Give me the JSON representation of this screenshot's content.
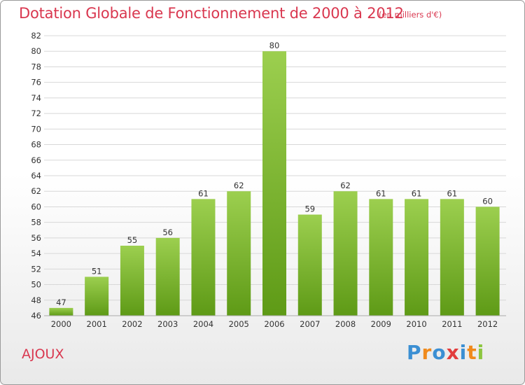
{
  "header": {
    "title": "Dotation Globale de Fonctionnement de 2000 à 2012",
    "subtitle": "(en milliers d'€)"
  },
  "commune": "AJOUX",
  "logo": {
    "text": "Proxiti",
    "letters": [
      {
        "ch": "P",
        "color": "#3b8fd3"
      },
      {
        "ch": "r",
        "color": "#f08a1c"
      },
      {
        "ch": "o",
        "color": "#3b8fd3"
      },
      {
        "ch": "x",
        "color": "#e23c3c"
      },
      {
        "ch": "i",
        "color": "#3b8fd3"
      },
      {
        "ch": "t",
        "color": "#f08a1c"
      },
      {
        "ch": "i",
        "color": "#8cc63f"
      }
    ]
  },
  "colors": {
    "title": "#d9374f",
    "bar_top": "#9ccf4f",
    "bar_bottom": "#5e9a16",
    "grid": "#d8d8d8"
  },
  "chart_data": {
    "type": "bar",
    "categories": [
      "2000",
      "2001",
      "2002",
      "2003",
      "2004",
      "2005",
      "2006",
      "2007",
      "2008",
      "2009",
      "2010",
      "2011",
      "2012"
    ],
    "values": [
      47,
      51,
      55,
      56,
      61,
      62,
      80,
      59,
      62,
      61,
      61,
      61,
      60
    ],
    "ylim": [
      46,
      82
    ],
    "yticks": [
      46,
      48,
      50,
      52,
      54,
      56,
      58,
      60,
      62,
      64,
      66,
      68,
      70,
      72,
      74,
      76,
      78,
      80,
      82
    ],
    "grid": true,
    "data_labels": true
  }
}
